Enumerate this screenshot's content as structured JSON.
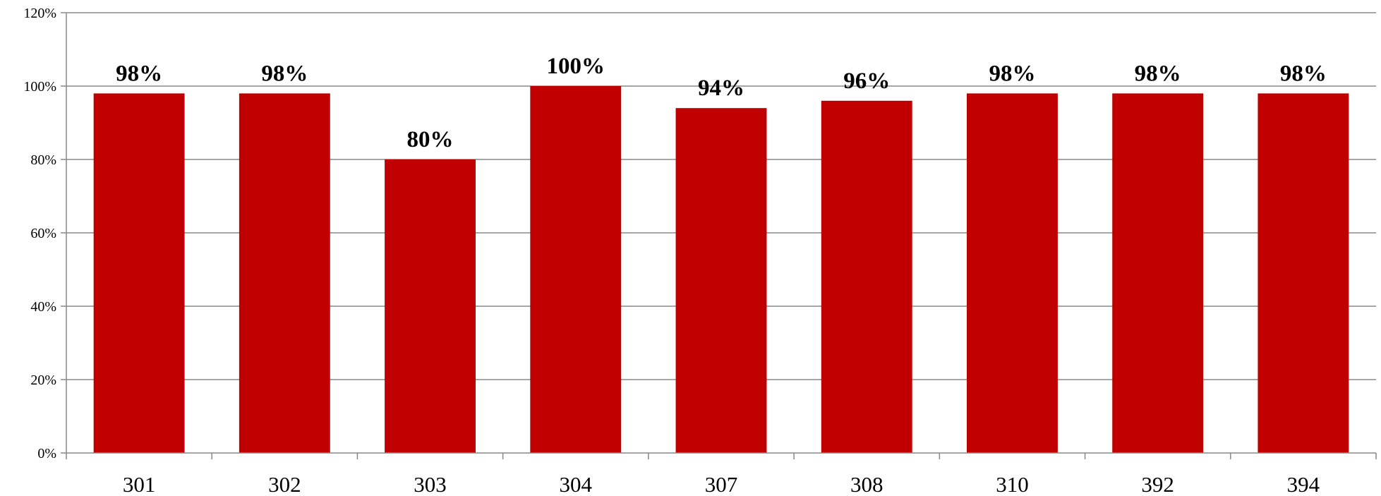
{
  "chart_data": {
    "type": "bar",
    "categories": [
      "301",
      "302",
      "303",
      "304",
      "307",
      "308",
      "310",
      "392",
      "394"
    ],
    "values": [
      98,
      98,
      80,
      100,
      94,
      96,
      98,
      98,
      98
    ],
    "data_labels": [
      "98%",
      "98%",
      "80%",
      "100%",
      "94%",
      "96%",
      "98%",
      "98%",
      "98%"
    ],
    "ylim": [
      0,
      120
    ],
    "yticks": [
      0,
      20,
      40,
      60,
      80,
      100,
      120
    ],
    "ytick_labels": [
      "0%",
      "20%",
      "40%",
      "60%",
      "80%",
      "100%",
      "120%"
    ],
    "grid": true,
    "legend": "none",
    "bar_color": "#C00000",
    "grid_color": "#888888",
    "axis_color": "#888888"
  }
}
